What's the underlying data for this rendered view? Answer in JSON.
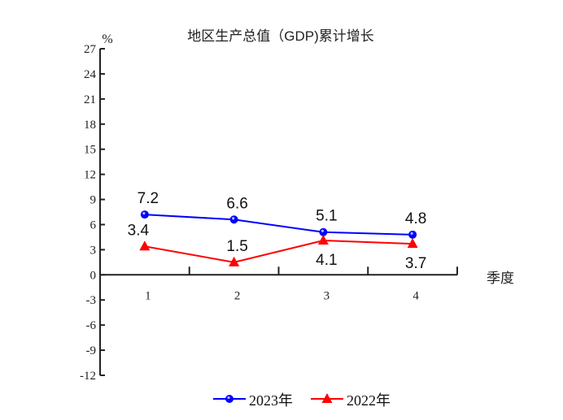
{
  "chart_data": {
    "type": "line",
    "title": "地区生产总值（GDP)累计增长",
    "ylabel": "%",
    "xlabel": "季度",
    "categories": [
      "1",
      "2",
      "3",
      "4"
    ],
    "ylim": [
      -12,
      27
    ],
    "yticks": [
      27,
      24,
      21,
      18,
      15,
      12,
      9,
      6,
      3,
      0,
      -3,
      -6,
      -9,
      -12
    ],
    "grid": false,
    "legend_position": "bottom",
    "series": [
      {
        "name": "2023年",
        "values": [
          7.2,
          6.6,
          5.1,
          4.8
        ],
        "color": "#0000ff",
        "marker": "circle",
        "labels": [
          "7.2",
          "6.6",
          "5.1",
          "4.8"
        ],
        "label_position": "above"
      },
      {
        "name": "2022年",
        "values": [
          3.4,
          1.5,
          4.1,
          3.7
        ],
        "color": "#ff0000",
        "marker": "triangle",
        "labels": [
          "3.4",
          "1.5",
          "4.1",
          "3.7"
        ],
        "label_position": [
          "above",
          "above",
          "below",
          "below"
        ]
      }
    ]
  }
}
